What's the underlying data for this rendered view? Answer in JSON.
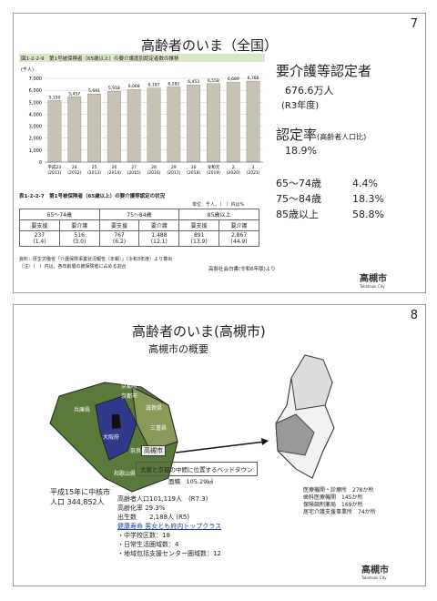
{
  "slide1": {
    "number": "7",
    "title": "高齢者のいま（全国）",
    "chart_caption": "図1-2-2-9　第1号被保険者（65歳以上）の要介護度別認定者数の推移",
    "summary": {
      "heading": "要介護等認定者",
      "count": "676.6万人",
      "year": "(R3年度)",
      "rate_heading": "認定率",
      "rate_note": "(高齢者人口比)",
      "rate": "18.9%",
      "ages": [
        [
          "65～74歳",
          "4.4%"
        ],
        [
          "75～84歳",
          "18.3%"
        ],
        [
          "85歳以上",
          "58.8%"
        ]
      ]
    },
    "table": {
      "caption": "表1-2-2-7　第1号被保険者（65歳以上）の要介護等認定の状況",
      "unit_note": "単位：千人、（　）内は%",
      "groups": [
        "65～74歳",
        "75～84歳",
        "85歳以上"
      ],
      "subheaders": [
        "要支援",
        "要介護",
        "要支援",
        "要介護",
        "要支援",
        "要介護"
      ],
      "values": [
        "237",
        "516",
        "767",
        "1,488",
        "891",
        "2,867"
      ],
      "shares": [
        "(1.4)",
        "(3.0)",
        "(6.2)",
        "(12.1)",
        "(13.9)",
        "(44.9)"
      ],
      "notes": [
        "資料：厚生労働省「介護保険事業状況報告（年報）」（令和3年度）より算出",
        "（注）（　）内は、各年齢層の被保険者に占める割合"
      ]
    },
    "source": "高齢社会白書(令和6年版)より",
    "logo": "高槻市",
    "logo_sub": "Takatsuki City"
  },
  "chart_data": {
    "type": "bar",
    "unit": "(千人)",
    "categories": [
      "平成23",
      "24",
      "25",
      "26",
      "27",
      "28",
      "29",
      "30",
      "令和元",
      "2",
      "3"
    ],
    "category_years": [
      "(2011)",
      "(2012)",
      "(2013)",
      "(2014)",
      "(2015)",
      "(2016)",
      "(2017)",
      "(2018)",
      "(2019)",
      "(2020)",
      "(2021)"
    ],
    "values": [
      5150,
      5457,
      5691,
      5918,
      6068,
      6187,
      6282,
      6453,
      6558,
      6689,
      6766
    ],
    "value_labels": [
      "5,150",
      "5,457",
      "5,691",
      "5,918",
      "6,068",
      "6,187",
      "6,282",
      "6,453",
      "6,558",
      "6,689",
      "6,766"
    ],
    "color": "#c8c2b4",
    "ylim": [
      0,
      7000
    ],
    "yticks": [
      0,
      {
        "value": 1000,
        "label": "1,000"
      },
      {
        "value": 2000,
        "label": "2,000"
      },
      {
        "value": 3000,
        "label": "3,000"
      },
      {
        "value": 4000,
        "label": "4,000"
      },
      {
        "value": 5000,
        "label": "5,000"
      },
      {
        "value": 6000,
        "label": "6,000"
      },
      {
        "value": 7000,
        "label": "7,000"
      }
    ],
    "grid": true
  },
  "slide2": {
    "number": "8",
    "title": "高齢者のいま(高槻市)",
    "subtitle": "高槻市の概要",
    "map_labels": [
      "京都府",
      "兵庫県",
      "京都市",
      "滋賀県",
      "大阪府",
      "三重県",
      "奈良県",
      "和歌山県",
      "高槻市"
    ],
    "callout": "大阪と京都の中間に位置するベッドタウン",
    "area": "面積　105.29㎢",
    "core_city": "平成15年に中核市",
    "population": "人口 344,852人",
    "stats": [
      "高齢者人口101,119人　(R7.3)",
      "高齢化率 29.3%",
      "出生数　　2,188人 (R5)",
      "健康寿命 男女とも府内トップクラス",
      "・中学校区数：18",
      "・日常生活圏域数：4",
      "・地域包括支援センター圏域数：12"
    ],
    "facilities": [
      "医療機関・診療所　278か所",
      "歯科医療機関　145か所",
      "保険調剤薬局　169か所",
      "居宅介護支援事業所　74か所"
    ],
    "logo": "高槻市",
    "logo_sub": "Takatsuki City"
  }
}
